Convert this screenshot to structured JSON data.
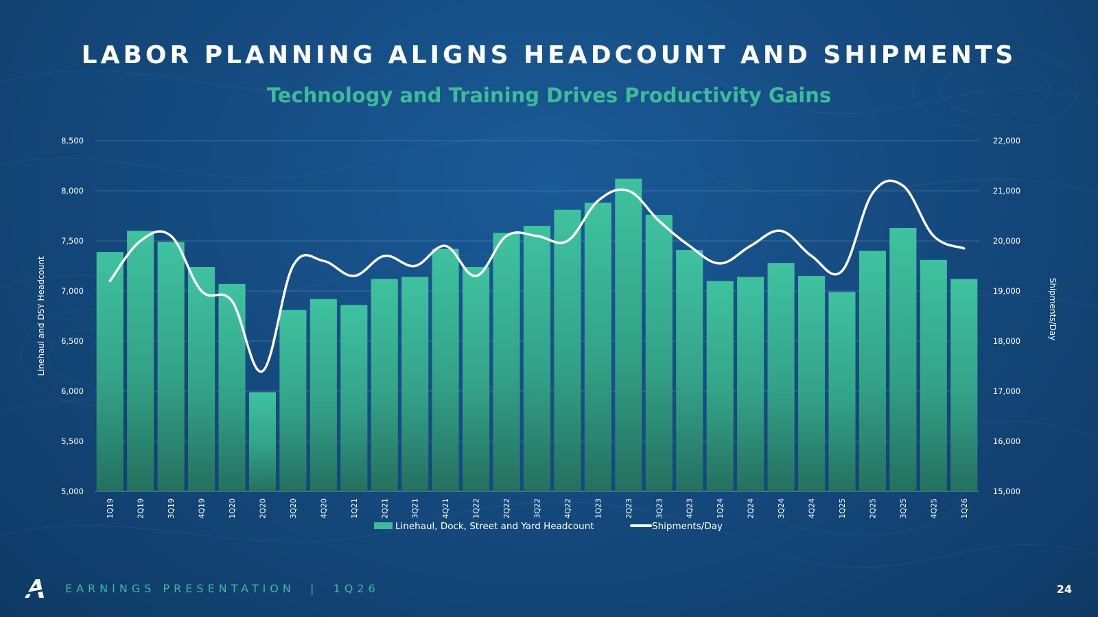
{
  "slide": {
    "title": "LABOR PLANNING ALIGNS HEADCOUNT AND SHIPMENTS",
    "subtitle": "Technology and Training Drives Productivity Gains",
    "footer": "EARNINGS PRESENTATION  |  1Q26",
    "page_number": "24",
    "logo_icon": "a-logo-icon"
  },
  "colors": {
    "bar": "#3dbb9a",
    "line": "#ffffff",
    "accent": "#3dbb9a"
  },
  "chart_data": {
    "type": "bar",
    "categories": [
      "1Q19",
      "2Q19",
      "3Q19",
      "4Q19",
      "1Q20",
      "2Q20",
      "3Q20",
      "4Q20",
      "1Q21",
      "2Q21",
      "3Q21",
      "4Q21",
      "1Q22",
      "2Q22",
      "3Q22",
      "4Q22",
      "1Q23",
      "2Q23",
      "3Q23",
      "4Q23",
      "1Q24",
      "2Q24",
      "3Q24",
      "4Q24",
      "1Q25",
      "2Q25",
      "3Q25",
      "4Q25",
      "1Q26"
    ],
    "series": [
      {
        "name": "Linehaul, Dock, Street and Yard Headcount",
        "type": "bar",
        "axis": "left",
        "values": [
          7390,
          7600,
          7490,
          7240,
          7070,
          5990,
          6810,
          6920,
          6860,
          7120,
          7140,
          7420,
          7240,
          7580,
          7650,
          7810,
          7880,
          8120,
          7760,
          7410,
          7100,
          7140,
          7280,
          7150,
          6990,
          7400,
          7630,
          7310,
          7120
        ]
      },
      {
        "name": "Shipments/Day",
        "type": "line",
        "axis": "right",
        "values": [
          19200,
          20000,
          20100,
          19000,
          18800,
          17400,
          19500,
          19600,
          19300,
          19700,
          19500,
          19900,
          19300,
          20100,
          20100,
          20000,
          20800,
          21000,
          20400,
          19900,
          19550,
          19900,
          20200,
          19700,
          19400,
          20950,
          21100,
          20100,
          19850
        ]
      }
    ],
    "ylabel": "Linehaul and DSY Headcount",
    "y2label": "Shipments/Day",
    "ylim": [
      5000,
      8500
    ],
    "y2lim": [
      15000,
      22000
    ],
    "yticks": [
      "5,000",
      "5,500",
      "6,000",
      "6,500",
      "7,000",
      "7,500",
      "8,000",
      "8,500"
    ],
    "y2ticks": [
      "15,000",
      "16,000",
      "17,000",
      "18,000",
      "19,000",
      "20,000",
      "21,000",
      "22,000"
    ],
    "grid": true,
    "legend_position": "bottom-center"
  }
}
